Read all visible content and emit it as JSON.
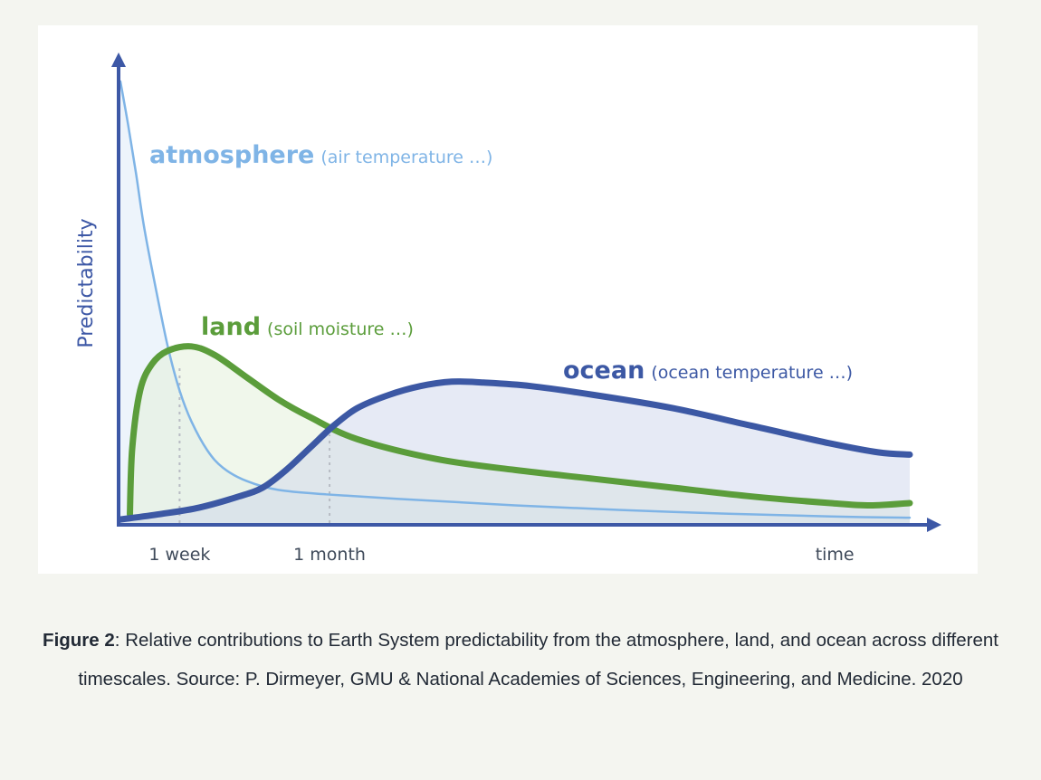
{
  "chart_data": {
    "type": "line",
    "ylabel": "Predictability",
    "x_ticks": [
      {
        "label": "1 week",
        "x": 0.075
      },
      {
        "label": "1 month",
        "x": 0.265
      },
      {
        "label": "time",
        "x": 0.905
      }
    ],
    "x_range": [
      0,
      1
    ],
    "y_range": [
      0,
      1
    ],
    "grid": false,
    "series": [
      {
        "name": "atmosphere",
        "note": "(air temperature …)",
        "color": "#7fb4e6",
        "points": [
          [
            0,
            1.0
          ],
          [
            0.01,
            0.9
          ],
          [
            0.02,
            0.79
          ],
          [
            0.03,
            0.67
          ],
          [
            0.045,
            0.53
          ],
          [
            0.06,
            0.4
          ],
          [
            0.075,
            0.3
          ],
          [
            0.09,
            0.23
          ],
          [
            0.11,
            0.165
          ],
          [
            0.13,
            0.125
          ],
          [
            0.16,
            0.095
          ],
          [
            0.2,
            0.075
          ],
          [
            0.26,
            0.065
          ],
          [
            0.35,
            0.055
          ],
          [
            0.5,
            0.04
          ],
          [
            0.7,
            0.025
          ],
          [
            0.9,
            0.015
          ],
          [
            1.0,
            0.012
          ]
        ]
      },
      {
        "name": "land",
        "note": "(soil moisture …)",
        "color": "#5b9d3b",
        "points": [
          [
            0.012,
            0.02
          ],
          [
            0.015,
            0.17
          ],
          [
            0.025,
            0.3
          ],
          [
            0.04,
            0.36
          ],
          [
            0.06,
            0.39
          ],
          [
            0.09,
            0.4
          ],
          [
            0.12,
            0.38
          ],
          [
            0.16,
            0.33
          ],
          [
            0.2,
            0.28
          ],
          [
            0.24,
            0.24
          ],
          [
            0.3,
            0.19
          ],
          [
            0.4,
            0.145
          ],
          [
            0.5,
            0.12
          ],
          [
            0.6,
            0.1
          ],
          [
            0.7,
            0.08
          ],
          [
            0.8,
            0.06
          ],
          [
            0.9,
            0.045
          ],
          [
            0.95,
            0.04
          ],
          [
            1.0,
            0.045
          ]
        ]
      },
      {
        "name": "ocean",
        "note": "(ocean temperature …)",
        "color": "#3c58a4",
        "points": [
          [
            0,
            0.008
          ],
          [
            0.05,
            0.02
          ],
          [
            0.1,
            0.035
          ],
          [
            0.15,
            0.06
          ],
          [
            0.18,
            0.08
          ],
          [
            0.21,
            0.12
          ],
          [
            0.24,
            0.17
          ],
          [
            0.27,
            0.22
          ],
          [
            0.3,
            0.26
          ],
          [
            0.34,
            0.29
          ],
          [
            0.38,
            0.31
          ],
          [
            0.42,
            0.32
          ],
          [
            0.46,
            0.318
          ],
          [
            0.52,
            0.31
          ],
          [
            0.6,
            0.29
          ],
          [
            0.7,
            0.26
          ],
          [
            0.8,
            0.22
          ],
          [
            0.9,
            0.18
          ],
          [
            0.96,
            0.16
          ],
          [
            1.0,
            0.155
          ]
        ]
      }
    ]
  },
  "caption": {
    "label": "Figure 2",
    "text": ": Relative contributions to Earth System predictability from the atmosphere, land, and ocean across different timescales. Source: P. Dirmeyer, GMU & National Academies of Sciences, Engineering, and Medicine. 2020"
  }
}
